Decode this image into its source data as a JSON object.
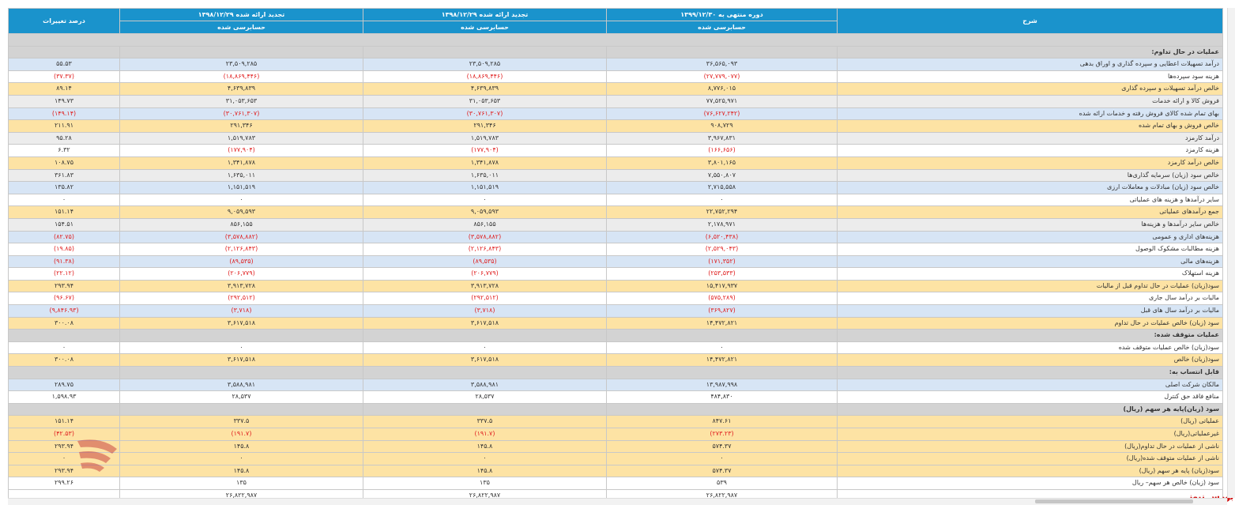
{
  "header": {
    "col_desc": "شرح",
    "col_current": "دوره منتهی به ۱۳۹۹/۱۲/۳۰",
    "col_restated_1": "تجدید ارائه شده ۱۳۹۸/۱۲/۲۹",
    "col_restated_2": "تجدید ارائه شده ۱۳۹۸/۱۲/۲۹",
    "col_change": "درصد تغییرات",
    "sub_audited": "حسابرسی شده"
  },
  "rows": [
    {
      "type": "section",
      "label": "عملیات در حال تداوم:"
    },
    {
      "type": "data",
      "color": "blue",
      "label": "درآمد تسهیلات اعطایی و سپرده گذاری و اوراق بدهی",
      "v1": "۳۶,۵۶۵,۰۹۳",
      "v2": "۲۳,۵۰۹,۲۸۵",
      "v3": "۲۳,۵۰۹,۲۸۵",
      "pct": "۵۵.۵۳",
      "neg": [
        false,
        false,
        false,
        false
      ]
    },
    {
      "type": "data",
      "color": "white",
      "label": "هزینه سود سپرده‌ها",
      "v1": "(۲۷,۷۷۹,۰۷۷)",
      "v2": "(۱۸,۸۶۹,۴۴۶)",
      "v3": "(۱۸,۸۶۹,۴۴۶)",
      "pct": "(۳۷.۳۷)",
      "neg": [
        true,
        true,
        true,
        true
      ]
    },
    {
      "type": "data",
      "color": "yellow",
      "label": "خالص درآمد تسهیلات و سپرده گذاری",
      "v1": "۸,۷۷۶,۰۱۵",
      "v2": "۴,۶۳۹,۸۳۹",
      "v3": "۴,۶۳۹,۸۳۹",
      "pct": "۸۹.۱۴",
      "neg": [
        false,
        false,
        false,
        false
      ]
    },
    {
      "type": "data",
      "color": "gray",
      "label": "فروش کالا و ارائه خدمات",
      "v1": "۷۷,۵۲۵,۹۷۱",
      "v2": "۳۱,۰۵۳,۶۵۳",
      "v3": "۳۱,۰۵۳,۶۵۳",
      "pct": "۱۴۹.۷۳",
      "neg": [
        false,
        false,
        false,
        false
      ]
    },
    {
      "type": "data",
      "color": "blue",
      "label": "بهای تمام شده کالای فروش رفته و خدمات ارائه شده",
      "v1": "(۷۶,۶۲۷,۲۴۲)",
      "v2": "(۳۰,۷۶۱,۳۰۷)",
      "v3": "(۳۰,۷۶۱,۳۰۷)",
      "pct": "(۱۴۹.۱۴)",
      "neg": [
        true,
        true,
        true,
        true
      ]
    },
    {
      "type": "data",
      "color": "yellow",
      "label": "خالص فروش و بهای تمام شده",
      "v1": "۹۰۸,۷۲۹",
      "v2": "۲۹۱,۳۴۶",
      "v3": "۲۹۱,۳۴۶",
      "pct": "۲۱۱.۹۱",
      "neg": [
        false,
        false,
        false,
        false
      ]
    },
    {
      "type": "data",
      "color": "gray",
      "label": "درآمد کارمزد",
      "v1": "۳,۹۶۷,۸۳۱",
      "v2": "۱,۵۱۹,۷۸۳",
      "v3": "۱,۵۱۹,۷۸۳",
      "pct": "۹۵.۲۸",
      "neg": [
        false,
        false,
        false,
        false
      ]
    },
    {
      "type": "data",
      "color": "white",
      "label": "هزینه کارمزد",
      "v1": "(۱۶۶,۶۵۶)",
      "v2": "(۱۷۷,۹۰۴)",
      "v3": "(۱۷۷,۹۰۴)",
      "pct": "۶.۳۲",
      "neg": [
        true,
        true,
        true,
        false
      ]
    },
    {
      "type": "data",
      "color": "yellow",
      "label": "خالص درآمد کارمزد",
      "v1": "۳,۸۰۱,۱۶۵",
      "v2": "۱,۳۴۱,۸۷۸",
      "v3": "۱,۳۴۱,۸۷۸",
      "pct": "۱۰۸.۷۵",
      "neg": [
        false,
        false,
        false,
        false
      ]
    },
    {
      "type": "data",
      "color": "gray",
      "label": "خالص سود (زیان) سرمایه گذاری‌ها",
      "v1": "۷,۵۵۰,۸۰۷",
      "v2": "۱,۶۳۵,۰۱۱",
      "v3": "۱,۶۳۵,۰۱۱",
      "pct": "۳۶۱.۸۳",
      "neg": [
        false,
        false,
        false,
        false
      ]
    },
    {
      "type": "data",
      "color": "blue",
      "label": "خالص سود (زیان) مبادلات و معاملات ارزی",
      "v1": "۲,۷۱۵,۵۵۸",
      "v2": "۱,۱۵۱,۵۱۹",
      "v3": "۱,۱۵۱,۵۱۹",
      "pct": "۱۳۵.۸۲",
      "neg": [
        false,
        false,
        false,
        false
      ]
    },
    {
      "type": "data",
      "color": "white",
      "label": "سایر درآمدها و هزینه های عملیاتی",
      "v1": "۰",
      "v2": "۰",
      "v3": "۰",
      "pct": "۰",
      "neg": [
        false,
        false,
        false,
        false
      ]
    },
    {
      "type": "data",
      "color": "yellow",
      "label": "جمع درآمدهای عملیاتی",
      "v1": "۲۲,۷۵۲,۲۹۴",
      "v2": "۹,۰۵۹,۵۹۳",
      "v3": "۹,۰۵۹,۵۹۳",
      "pct": "۱۵۱.۱۴",
      "neg": [
        false,
        false,
        false,
        false
      ]
    },
    {
      "type": "data",
      "color": "gray",
      "label": "خالص سایر درآمدها و هزینه‌ها",
      "v1": "۲,۱۷۸,۹۷۱",
      "v2": "۸۵۶,۱۵۵",
      "v3": "۸۵۶,۱۵۵",
      "pct": "۱۵۴.۵۱",
      "neg": [
        false,
        false,
        false,
        false
      ]
    },
    {
      "type": "data",
      "color": "blue",
      "label": "هزینه‌های اداری و عمومی",
      "v1": "(۶,۵۲۰,۴۳۸)",
      "v2": "(۳,۵۷۸,۸۸۲)",
      "v3": "(۳,۵۷۸,۸۸۲)",
      "pct": "(۸۲.۷۵)",
      "neg": [
        true,
        true,
        true,
        true
      ]
    },
    {
      "type": "data",
      "color": "white",
      "label": "هزینه مطالبات مشکوک الوصول",
      "v1": "(۲,۵۲۹,۰۴۳)",
      "v2": "(۲,۱۲۶,۸۴۳)",
      "v3": "(۲,۱۲۶,۸۴۳)",
      "pct": "(۱۹.۸۵)",
      "neg": [
        true,
        true,
        true,
        true
      ]
    },
    {
      "type": "data",
      "color": "blue",
      "label": "هزینه‌های مالی",
      "v1": "(۱۷۱,۳۵۲)",
      "v2": "(۸۹,۵۳۵)",
      "v3": "(۸۹,۵۳۵)",
      "pct": "(۹۱.۳۸)",
      "neg": [
        true,
        true,
        true,
        true
      ]
    },
    {
      "type": "data",
      "color": "white",
      "label": "هزینه استهلاک",
      "v1": "(۲۵۳,۵۳۳)",
      "v2": "(۲۰۶,۷۷۹)",
      "v3": "(۲۰۶,۷۷۹)",
      "pct": "(۲۲.۱۲)",
      "neg": [
        true,
        true,
        true,
        true
      ]
    },
    {
      "type": "data",
      "color": "yellow",
      "label": "سود(زیان) عملیات در حال تداوم قبل از مالیات",
      "v1": "۱۵,۴۱۷,۹۳۷",
      "v2": "۳,۹۱۳,۷۲۸",
      "v3": "۳,۹۱۳,۷۲۸",
      "pct": "۲۹۳.۹۴",
      "neg": [
        false,
        false,
        false,
        false
      ]
    },
    {
      "type": "data",
      "color": "white",
      "label": "مالیات بر درآمد سال جاری",
      "v1": "(۵۷۵,۲۸۹)",
      "v2": "(۲۹۲,۵۱۲)",
      "v3": "(۲۹۲,۵۱۲)",
      "pct": "(۹۶.۶۷)",
      "neg": [
        true,
        true,
        true,
        true
      ]
    },
    {
      "type": "data",
      "color": "blue",
      "label": "مالیات بر درآمد سال های قبل",
      "v1": "(۳۶۹,۸۲۷)",
      "v2": "(۳,۷۱۸)",
      "v3": "(۳,۷۱۸)",
      "pct": "(۹,۸۴۶.۹۳)",
      "neg": [
        true,
        true,
        true,
        true
      ]
    },
    {
      "type": "data",
      "color": "yellow",
      "label": "سود (زیان) خالص عملیات در حال تداوم",
      "v1": "۱۴,۴۷۲,۸۲۱",
      "v2": "۳,۶۱۷,۵۱۸",
      "v3": "۳,۶۱۷,۵۱۸",
      "pct": "۳۰۰.۰۸",
      "neg": [
        false,
        false,
        false,
        false
      ]
    },
    {
      "type": "section",
      "label": "عملیات متوقف شده:"
    },
    {
      "type": "data",
      "color": "white",
      "label": "سود(زیان) خالص عملیات متوقف شده",
      "v1": "۰",
      "v2": "۰",
      "v3": "۰",
      "pct": "۰",
      "neg": [
        false,
        false,
        false,
        false
      ]
    },
    {
      "type": "data",
      "color": "yellow",
      "label": "سود(زیان) خالص",
      "v1": "۱۴,۴۷۲,۸۲۱",
      "v2": "۳,۶۱۷,۵۱۸",
      "v3": "۳,۶۱۷,۵۱۸",
      "pct": "۳۰۰.۰۸",
      "neg": [
        false,
        false,
        false,
        false
      ]
    },
    {
      "type": "section",
      "label": "قابل انتساب به:"
    },
    {
      "type": "data",
      "color": "blue",
      "label": "مالکان شرکت اصلی",
      "v1": "۱۳,۹۸۷,۹۹۸",
      "v2": "۳,۵۸۸,۹۸۱",
      "v3": "۳,۵۸۸,۹۸۱",
      "pct": "۲۸۹.۷۵",
      "neg": [
        false,
        false,
        false,
        false
      ]
    },
    {
      "type": "data",
      "color": "white",
      "label": "منافع فاقد حق کنترل",
      "v1": "۴۸۴,۸۳۰",
      "v2": "۲۸,۵۳۷",
      "v3": "۲۸,۵۳۷",
      "pct": "۱,۵۹۸.۹۳",
      "neg": [
        false,
        false,
        false,
        false
      ]
    },
    {
      "type": "section",
      "label": "سود (زیان)پایه هر سهم (ریال)"
    },
    {
      "type": "data",
      "color": "yellow",
      "label": "عملیاتی (ریال)",
      "v1": "۸۴۷.۶۱",
      "v2": "۳۳۷.۵",
      "v3": "۳۳۷.۵",
      "pct": "۱۵۱.۱۴",
      "neg": [
        false,
        false,
        false,
        false
      ]
    },
    {
      "type": "data",
      "color": "yellow",
      "label": "غیرعملیاتی(ریال)",
      "v1": "(۲۷۳.۲۳)",
      "v2": "(۱۹۱.۷)",
      "v3": "(۱۹۱.۷)",
      "pct": "(۴۲.۵۳)",
      "neg": [
        true,
        true,
        true,
        true
      ]
    },
    {
      "type": "data",
      "color": "yellow",
      "label": "ناشی از عملیات در حال تداوم(ریال)",
      "v1": "۵۷۴.۳۷",
      "v2": "۱۴۵.۸",
      "v3": "۱۴۵.۸",
      "pct": "۲۹۳.۹۴",
      "neg": [
        false,
        false,
        false,
        false
      ]
    },
    {
      "type": "data",
      "color": "yellow",
      "label": "ناشی از عملیات متوقف شده(ریال)",
      "v1": "۰",
      "v2": "۰",
      "v3": "۰",
      "pct": "۰",
      "neg": [
        false,
        false,
        false,
        false
      ]
    },
    {
      "type": "data",
      "color": "yellow",
      "label": "سود(زیان) پایه هر سهم (ریال)",
      "v1": "۵۷۴.۳۷",
      "v2": "۱۴۵.۸",
      "v3": "۱۴۵.۸",
      "pct": "۲۹۳.۹۴",
      "neg": [
        false,
        false,
        false,
        false
      ]
    },
    {
      "type": "data",
      "color": "white",
      "label": "سود (زیان) خالص هر سهم– ریال",
      "v1": "۵۳۹",
      "v2": "۱۳۵",
      "v3": "۱۳۵",
      "pct": "۲۹۹.۲۶",
      "neg": [
        false,
        false,
        false,
        false
      ]
    },
    {
      "type": "data",
      "color": "white",
      "label": "",
      "v1": "۲۶,۸۲۲,۹۸۷",
      "v2": "۲۶,۸۲۲,۹۸۷",
      "v3": "۲۶,۸۲۲,۹۸۷",
      "pct": "",
      "neg": [
        false,
        false,
        false,
        false
      ]
    }
  ],
  "footer": {
    "brand_text": "بورس نیوز"
  },
  "watermark": {
    "icon": "bourse-news-logo-icon",
    "text": "بورس نیوز"
  },
  "colors": {
    "header_bg": "#1a93cc",
    "row_blue": "#d7e5f5",
    "row_yellow": "#fde3a4",
    "row_gray": "#ececec",
    "section_bg": "#d3d3d3",
    "negative": "#e02020",
    "brand_red": "#d01010"
  }
}
